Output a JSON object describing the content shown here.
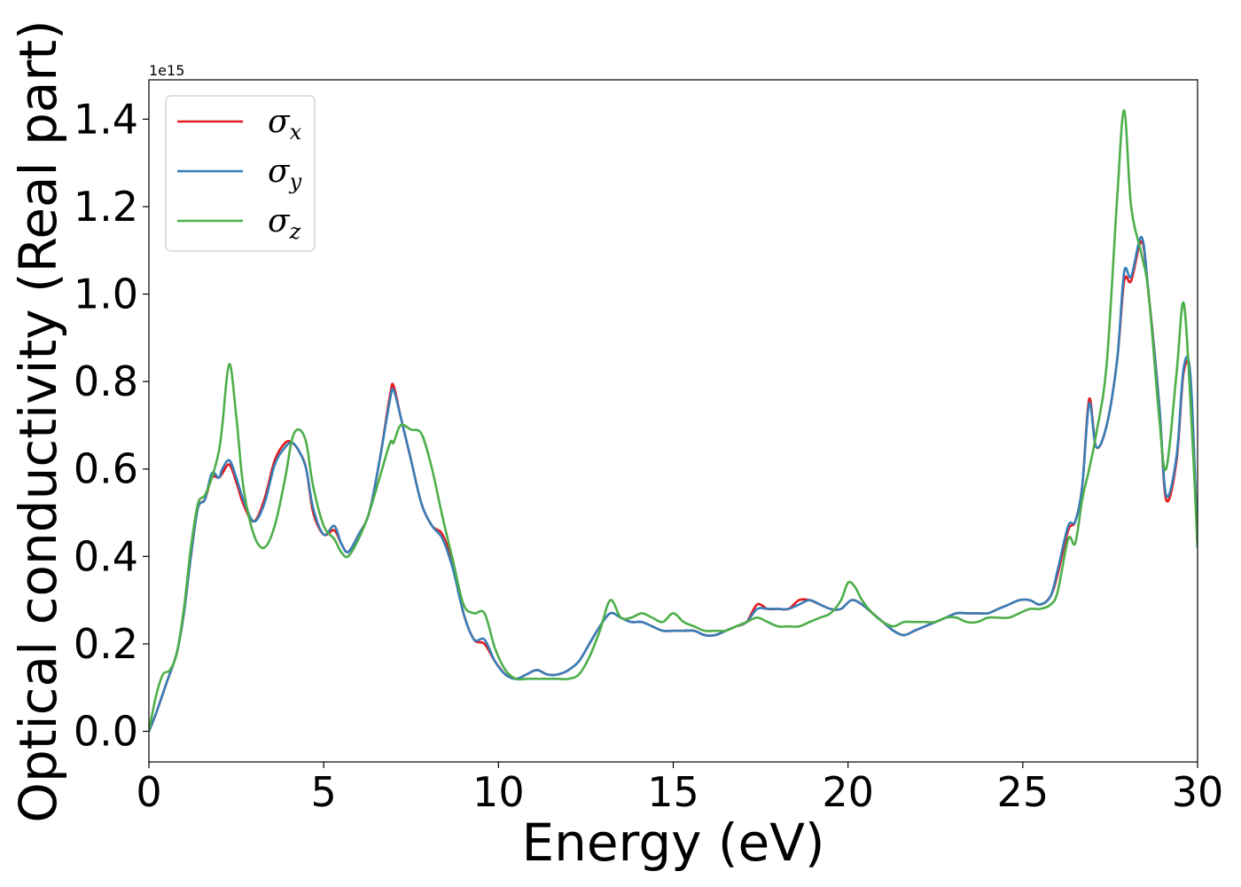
{
  "chart_data": {
    "type": "line",
    "xlabel": "Energy (eV)",
    "ylabel": "Optical conductivity (Real part)",
    "y_offset_label": "1e15",
    "xlim": [
      0,
      30
    ],
    "ylim": [
      -0.07,
      1.49
    ],
    "x_ticks": [
      0,
      5,
      10,
      15,
      20,
      25,
      30
    ],
    "x_tick_labels": [
      "0",
      "5",
      "10",
      "15",
      "20",
      "25",
      "30"
    ],
    "y_ticks": [
      0.0,
      0.2,
      0.4,
      0.6,
      0.8,
      1.0,
      1.2,
      1.4
    ],
    "y_tick_labels": [
      "0.0",
      "0.2",
      "0.4",
      "0.6",
      "0.8",
      "1.0",
      "1.2",
      "1.4"
    ],
    "grid": false,
    "legend_position": "top-left",
    "series": [
      {
        "name": "σx",
        "symbol": "σ",
        "subscript": "x",
        "color": "#e41a1c",
        "x": [
          0,
          0.2,
          0.5,
          0.8,
          1.0,
          1.2,
          1.4,
          1.6,
          1.8,
          2.0,
          2.1,
          2.3,
          2.5,
          2.7,
          3.0,
          3.3,
          3.6,
          3.9,
          4.1,
          4.3,
          4.5,
          4.7,
          5.0,
          5.3,
          5.5,
          5.7,
          6.0,
          6.3,
          6.6,
          6.9,
          7.0,
          7.2,
          7.5,
          7.8,
          8.1,
          8.4,
          8.7,
          9.0,
          9.3,
          9.6,
          9.9,
          10.2,
          10.5,
          10.8,
          11.1,
          11.4,
          11.7,
          12.0,
          12.3,
          12.6,
          12.9,
          13.2,
          13.5,
          13.8,
          14.1,
          14.4,
          14.7,
          15.0,
          15.3,
          15.6,
          15.9,
          16.2,
          16.5,
          16.8,
          17.1,
          17.4,
          17.7,
          18.0,
          18.3,
          18.6,
          18.9,
          19.2,
          19.5,
          19.8,
          20.1,
          20.4,
          20.7,
          21.0,
          21.3,
          21.6,
          21.9,
          22.2,
          22.5,
          22.8,
          23.1,
          23.4,
          23.7,
          24.0,
          24.3,
          24.6,
          24.9,
          25.2,
          25.5,
          25.8,
          26.0,
          26.3,
          26.5,
          26.7,
          26.9,
          27.1,
          27.4,
          27.7,
          27.9,
          28.1,
          28.4,
          28.6,
          28.9,
          29.1,
          29.4,
          29.6,
          29.8,
          30.0
        ],
        "y": [
          0.0,
          0.04,
          0.11,
          0.18,
          0.27,
          0.4,
          0.51,
          0.53,
          0.58,
          0.58,
          0.59,
          0.61,
          0.57,
          0.52,
          0.48,
          0.53,
          0.62,
          0.66,
          0.66,
          0.64,
          0.6,
          0.5,
          0.45,
          0.46,
          0.43,
          0.41,
          0.45,
          0.5,
          0.62,
          0.77,
          0.79,
          0.72,
          0.62,
          0.52,
          0.47,
          0.45,
          0.38,
          0.27,
          0.21,
          0.2,
          0.16,
          0.13,
          0.12,
          0.13,
          0.14,
          0.13,
          0.13,
          0.14,
          0.16,
          0.2,
          0.24,
          0.27,
          0.26,
          0.25,
          0.25,
          0.24,
          0.23,
          0.23,
          0.23,
          0.23,
          0.22,
          0.22,
          0.23,
          0.24,
          0.25,
          0.29,
          0.28,
          0.28,
          0.28,
          0.3,
          0.3,
          0.29,
          0.28,
          0.28,
          0.3,
          0.29,
          0.27,
          0.25,
          0.23,
          0.22,
          0.23,
          0.24,
          0.25,
          0.26,
          0.27,
          0.27,
          0.27,
          0.27,
          0.28,
          0.29,
          0.3,
          0.3,
          0.29,
          0.31,
          0.36,
          0.46,
          0.48,
          0.56,
          0.76,
          0.65,
          0.7,
          0.85,
          1.03,
          1.03,
          1.12,
          1.0,
          0.75,
          0.53,
          0.62,
          0.82,
          0.8,
          0.42
        ]
      },
      {
        "name": "σy",
        "symbol": "σ",
        "subscript": "y",
        "color": "#377eb8",
        "x": [
          0,
          0.2,
          0.5,
          0.8,
          1.0,
          1.2,
          1.4,
          1.6,
          1.8,
          2.0,
          2.1,
          2.3,
          2.5,
          2.7,
          3.0,
          3.3,
          3.6,
          3.9,
          4.1,
          4.3,
          4.5,
          4.7,
          5.0,
          5.3,
          5.5,
          5.7,
          6.0,
          6.3,
          6.6,
          6.9,
          7.0,
          7.2,
          7.5,
          7.8,
          8.1,
          8.4,
          8.7,
          9.0,
          9.3,
          9.6,
          9.9,
          10.2,
          10.5,
          10.8,
          11.1,
          11.4,
          11.7,
          12.0,
          12.3,
          12.6,
          12.9,
          13.2,
          13.5,
          13.8,
          14.1,
          14.4,
          14.7,
          15.0,
          15.3,
          15.6,
          15.9,
          16.2,
          16.5,
          16.8,
          17.1,
          17.4,
          17.7,
          18.0,
          18.3,
          18.6,
          18.9,
          19.2,
          19.5,
          19.8,
          20.1,
          20.4,
          20.7,
          21.0,
          21.3,
          21.6,
          21.9,
          22.2,
          22.5,
          22.8,
          23.1,
          23.4,
          23.7,
          24.0,
          24.3,
          24.6,
          24.9,
          25.2,
          25.5,
          25.8,
          26.0,
          26.3,
          26.5,
          26.7,
          26.9,
          27.1,
          27.4,
          27.7,
          27.9,
          28.1,
          28.4,
          28.6,
          28.9,
          29.1,
          29.4,
          29.6,
          29.8,
          30.0
        ],
        "y": [
          0.0,
          0.04,
          0.11,
          0.18,
          0.27,
          0.4,
          0.51,
          0.53,
          0.59,
          0.58,
          0.6,
          0.62,
          0.58,
          0.53,
          0.48,
          0.52,
          0.61,
          0.65,
          0.66,
          0.64,
          0.6,
          0.51,
          0.45,
          0.47,
          0.43,
          0.41,
          0.45,
          0.5,
          0.62,
          0.76,
          0.78,
          0.72,
          0.62,
          0.52,
          0.47,
          0.44,
          0.37,
          0.27,
          0.21,
          0.21,
          0.16,
          0.13,
          0.12,
          0.13,
          0.14,
          0.13,
          0.13,
          0.14,
          0.16,
          0.2,
          0.24,
          0.27,
          0.26,
          0.25,
          0.25,
          0.24,
          0.23,
          0.23,
          0.23,
          0.23,
          0.22,
          0.22,
          0.23,
          0.24,
          0.25,
          0.28,
          0.28,
          0.28,
          0.28,
          0.29,
          0.3,
          0.29,
          0.28,
          0.28,
          0.3,
          0.29,
          0.27,
          0.25,
          0.23,
          0.22,
          0.23,
          0.24,
          0.25,
          0.26,
          0.27,
          0.27,
          0.27,
          0.27,
          0.28,
          0.29,
          0.3,
          0.3,
          0.29,
          0.31,
          0.37,
          0.47,
          0.48,
          0.56,
          0.75,
          0.65,
          0.7,
          0.85,
          1.05,
          1.04,
          1.13,
          1.0,
          0.75,
          0.54,
          0.63,
          0.83,
          0.81,
          0.42
        ]
      },
      {
        "name": "σz",
        "symbol": "σ",
        "subscript": "z",
        "color": "#4daf4a",
        "x": [
          0,
          0.2,
          0.4,
          0.6,
          0.8,
          1.0,
          1.2,
          1.4,
          1.6,
          1.8,
          2.0,
          2.1,
          2.3,
          2.5,
          2.7,
          3.0,
          3.3,
          3.6,
          3.9,
          4.1,
          4.3,
          4.5,
          4.7,
          5.0,
          5.3,
          5.5,
          5.7,
          6.0,
          6.3,
          6.6,
          6.9,
          7.0,
          7.2,
          7.5,
          7.8,
          8.1,
          8.4,
          8.7,
          9.0,
          9.3,
          9.6,
          9.9,
          10.2,
          10.5,
          10.8,
          11.1,
          11.4,
          11.7,
          12.0,
          12.3,
          12.6,
          12.9,
          13.2,
          13.5,
          13.8,
          14.1,
          14.4,
          14.7,
          15.0,
          15.3,
          15.6,
          15.9,
          16.2,
          16.5,
          16.8,
          17.1,
          17.4,
          17.7,
          18.0,
          18.3,
          18.6,
          18.9,
          19.2,
          19.5,
          19.8,
          20.0,
          20.2,
          20.4,
          20.7,
          21.0,
          21.3,
          21.6,
          21.9,
          22.2,
          22.5,
          22.8,
          23.1,
          23.4,
          23.7,
          24.0,
          24.3,
          24.6,
          24.9,
          25.2,
          25.5,
          25.8,
          26.0,
          26.3,
          26.5,
          26.7,
          26.9,
          27.1,
          27.4,
          27.7,
          27.9,
          28.1,
          28.4,
          28.6,
          28.9,
          29.1,
          29.4,
          29.6,
          29.8,
          30.0
        ],
        "y": [
          0.0,
          0.08,
          0.13,
          0.14,
          0.18,
          0.28,
          0.42,
          0.52,
          0.54,
          0.58,
          0.64,
          0.7,
          0.84,
          0.72,
          0.56,
          0.45,
          0.42,
          0.47,
          0.58,
          0.67,
          0.69,
          0.66,
          0.56,
          0.47,
          0.44,
          0.41,
          0.4,
          0.44,
          0.5,
          0.58,
          0.66,
          0.66,
          0.7,
          0.69,
          0.68,
          0.6,
          0.49,
          0.39,
          0.29,
          0.27,
          0.27,
          0.19,
          0.14,
          0.12,
          0.12,
          0.12,
          0.12,
          0.12,
          0.12,
          0.13,
          0.17,
          0.23,
          0.3,
          0.26,
          0.26,
          0.27,
          0.26,
          0.25,
          0.27,
          0.25,
          0.24,
          0.23,
          0.23,
          0.23,
          0.24,
          0.25,
          0.26,
          0.25,
          0.24,
          0.24,
          0.24,
          0.25,
          0.26,
          0.27,
          0.3,
          0.34,
          0.33,
          0.3,
          0.27,
          0.25,
          0.24,
          0.25,
          0.25,
          0.25,
          0.25,
          0.26,
          0.26,
          0.25,
          0.25,
          0.26,
          0.26,
          0.26,
          0.27,
          0.28,
          0.28,
          0.29,
          0.32,
          0.44,
          0.43,
          0.53,
          0.6,
          0.68,
          0.84,
          1.22,
          1.42,
          1.2,
          1.09,
          1.0,
          0.72,
          0.6,
          0.82,
          0.98,
          0.75,
          0.42
        ]
      }
    ]
  }
}
